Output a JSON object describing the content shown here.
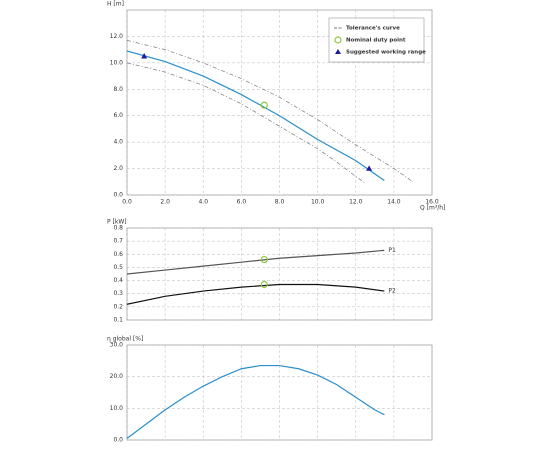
{
  "chart_data": [
    {
      "type": "line",
      "y_label": "H [m]",
      "x_label": "Q [m³/h]",
      "grid": true,
      "legend": "upper right",
      "xlim": [
        0,
        16
      ],
      "xticks": [
        {
          "value": 0,
          "label": "0.0"
        },
        {
          "value": 2,
          "label": "2.0"
        },
        {
          "value": 4,
          "label": "4.0"
        },
        {
          "value": 6,
          "label": "6.0"
        },
        {
          "value": 8,
          "label": "8.0"
        },
        {
          "value": 10,
          "label": "10.0"
        },
        {
          "value": 12,
          "label": "12.0"
        },
        {
          "value": 14,
          "label": "14.0"
        },
        {
          "value": 16,
          "label": "16.0"
        }
      ],
      "ylim": [
        0,
        14
      ],
      "yticks": [
        {
          "value": 0,
          "label": "0.0"
        },
        {
          "value": 2,
          "label": "2.0"
        },
        {
          "value": 4,
          "label": "4.0"
        },
        {
          "value": 6,
          "label": "6.0"
        },
        {
          "value": 8,
          "label": "8.0"
        },
        {
          "value": 10,
          "label": "10.0"
        },
        {
          "value": 12,
          "label": "12.0"
        }
      ],
      "series": [
        {
          "name": "Tolerance's curve",
          "color": "#777777",
          "dashed": true,
          "x": [
            0,
            2,
            4,
            6,
            8,
            10,
            12,
            14,
            15
          ],
          "values": [
            11.7,
            11.0,
            10.0,
            8.8,
            7.4,
            5.7,
            3.8,
            2.0,
            1.0
          ]
        },
        {
          "color": "#777777",
          "dashed": true,
          "x": [
            0,
            2,
            4,
            6,
            8,
            10,
            11,
            12,
            12.5
          ],
          "values": [
            10.0,
            9.3,
            8.3,
            6.9,
            5.2,
            3.5,
            2.5,
            1.4,
            0.9
          ]
        },
        {
          "color": "#2a8fc9",
          "x": [
            0,
            2,
            4,
            6,
            8,
            10,
            12,
            13.5
          ],
          "values": [
            10.9,
            10.1,
            9.0,
            7.6,
            6.0,
            4.2,
            2.6,
            1.1
          ]
        },
        {
          "name": "Nominal duty point",
          "marker": "circle",
          "color": "#8cc63f",
          "x": [
            7.2
          ],
          "values": [
            6.8
          ]
        },
        {
          "name": "Suggested working range",
          "marker": "triangle",
          "color": "#1a1aa0",
          "x": [
            0.9,
            12.7
          ],
          "values": [
            10.5,
            2.0
          ]
        }
      ]
    },
    {
      "type": "line",
      "y_label": "P [kW]",
      "grid": true,
      "xlim": [
        0,
        16
      ],
      "xticks": [
        0,
        2,
        4,
        6,
        8,
        10,
        12,
        14,
        16
      ],
      "xtick_labels": false,
      "ylim": [
        0.1,
        0.8
      ],
      "yticks": [
        0.1,
        0.2,
        0.3,
        0.4,
        0.5,
        0.6,
        0.7,
        0.8
      ],
      "series": [
        {
          "name": "P1",
          "color": "#555555",
          "x": [
            0,
            2,
            4,
            6,
            8,
            10,
            12,
            13.5
          ],
          "values": [
            0.45,
            0.48,
            0.51,
            0.54,
            0.57,
            0.59,
            0.61,
            0.63
          ]
        },
        {
          "name": "P2",
          "color": "#111111",
          "x": [
            0,
            2,
            4,
            6,
            8,
            10,
            12,
            13.5
          ],
          "values": [
            0.22,
            0.28,
            0.32,
            0.35,
            0.37,
            0.37,
            0.35,
            0.32
          ]
        },
        {
          "marker": "circle",
          "color": "#8cc63f",
          "x": [
            7.2,
            7.2
          ],
          "values": [
            0.56,
            0.37
          ]
        }
      ]
    },
    {
      "type": "line",
      "y_label": "η global [%]",
      "grid": true,
      "xlim": [
        0,
        16
      ],
      "xticks": [
        0,
        2,
        4,
        6,
        8,
        10,
        12,
        14,
        16
      ],
      "xtick_labels": false,
      "ylim": [
        0,
        30
      ],
      "yticks": [
        {
          "value": 0,
          "label": "0.0"
        },
        {
          "value": 10,
          "label": "10.0"
        },
        {
          "value": 20,
          "label": "20.0"
        },
        {
          "value": 30,
          "label": "30.0"
        }
      ],
      "series": [
        {
          "color": "#2a8fc9",
          "x": [
            0,
            1,
            2,
            3,
            4,
            5,
            6,
            7,
            8,
            9,
            10,
            11,
            12,
            13,
            13.5
          ],
          "values": [
            0.5,
            5,
            9.5,
            13.5,
            17,
            20,
            22.5,
            23.5,
            23.5,
            22.5,
            20.5,
            17.5,
            13.5,
            9.5,
            8
          ]
        }
      ]
    }
  ]
}
